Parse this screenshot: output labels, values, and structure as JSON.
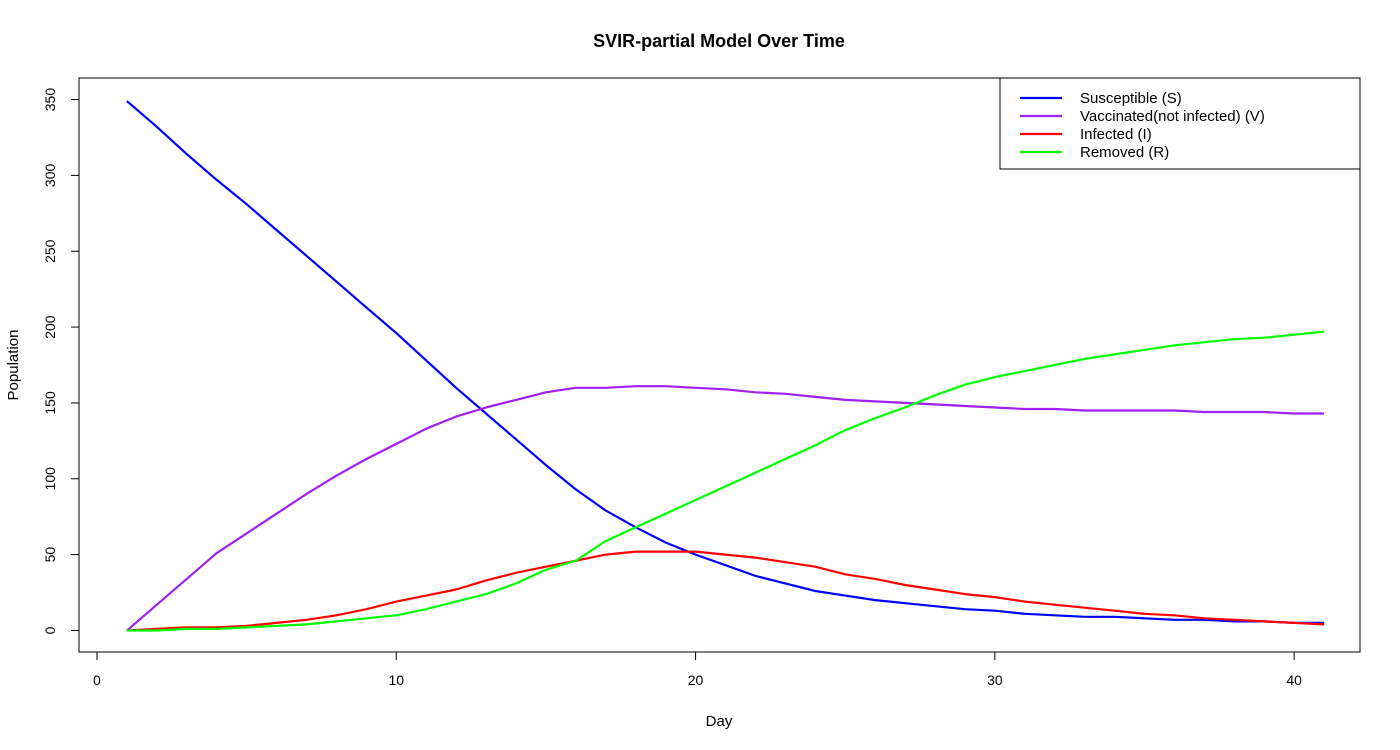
{
  "chart_data": {
    "type": "line",
    "title": "SVIR-partial Model Over Time",
    "xlabel": "Day",
    "ylabel": "Population",
    "xlim": [
      -0.6,
      42.2
    ],
    "ylim": [
      -14.2,
      364.2
    ],
    "x_ticks": [
      0,
      10,
      20,
      30,
      40
    ],
    "y_ticks": [
      0,
      50,
      100,
      150,
      200,
      250,
      300,
      350
    ],
    "grid": false,
    "legend_position": "top-right",
    "x": [
      1,
      2,
      3,
      4,
      5,
      6,
      7,
      8,
      9,
      10,
      11,
      12,
      13,
      14,
      15,
      16,
      17,
      18,
      19,
      20,
      21,
      22,
      23,
      24,
      25,
      26,
      27,
      28,
      29,
      30,
      31,
      32,
      33,
      34,
      35,
      36,
      37,
      38,
      39,
      40,
      41
    ],
    "series": [
      {
        "name": "Susceptible (S)",
        "color": "#0000ff",
        "values": [
          349,
          332,
          314,
          297,
          281,
          264,
          247,
          230,
          213,
          196,
          178,
          160,
          143,
          126,
          109,
          93,
          79,
          68,
          58,
          50,
          43,
          36,
          31,
          26,
          23,
          20,
          18,
          16,
          14,
          13,
          11,
          10,
          9,
          9,
          8,
          7,
          7,
          6,
          6,
          5,
          5
        ]
      },
      {
        "name": "Vaccinated(not infected) (V)",
        "color": "#a020f0",
        "values": [
          0,
          17,
          34,
          51,
          64,
          77,
          90,
          102,
          113,
          123,
          133,
          141,
          147,
          152,
          157,
          160,
          160,
          161,
          161,
          160,
          159,
          157,
          156,
          154,
          152,
          151,
          150,
          149,
          148,
          147,
          146,
          146,
          145,
          145,
          145,
          145,
          144,
          144,
          144,
          143,
          143
        ]
      },
      {
        "name": "Infected (I)",
        "color": "#ff0000",
        "values": [
          0,
          1,
          2,
          2,
          3,
          5,
          7,
          10,
          14,
          19,
          23,
          27,
          33,
          38,
          42,
          46,
          50,
          52,
          52,
          52,
          50,
          48,
          45,
          42,
          37,
          34,
          30,
          27,
          24,
          22,
          19,
          17,
          15,
          13,
          11,
          10,
          8,
          7,
          6,
          5,
          4
        ]
      },
      {
        "name": "Removed (R)",
        "color": "#00ff00",
        "values": [
          0,
          0,
          1,
          1,
          2,
          3,
          4,
          6,
          8,
          10,
          14,
          19,
          24,
          31,
          40,
          46,
          59,
          68,
          77,
          86,
          95,
          104,
          113,
          122,
          132,
          140,
          147,
          155,
          162,
          167,
          171,
          175,
          179,
          182,
          185,
          188,
          190,
          192,
          193,
          195,
          197
        ]
      }
    ]
  }
}
